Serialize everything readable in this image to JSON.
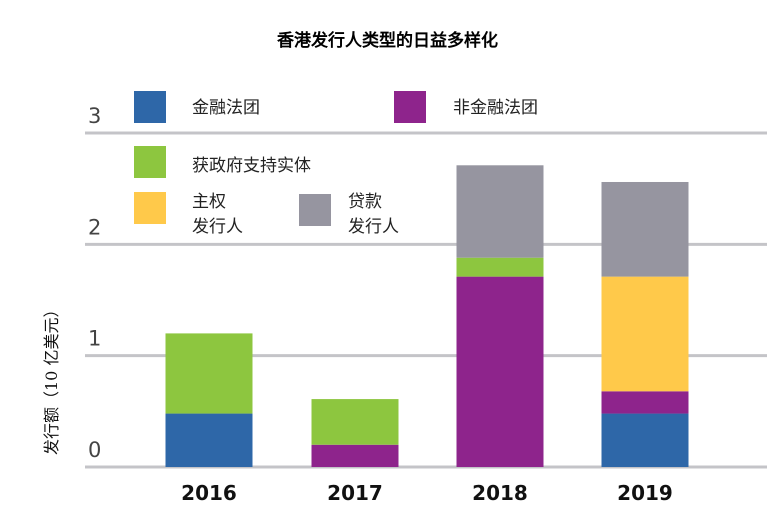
{
  "chart_data": {
    "type": "bar",
    "stacked": true,
    "title": "香港发行人类型的日益多样化",
    "xlabel": "",
    "ylabel": "发行额（10 亿美元）",
    "ylim": [
      0,
      3
    ],
    "yticks": [
      0,
      1,
      2,
      3
    ],
    "grid": true,
    "legend_position": "top-left (inside plot)",
    "categories": [
      "2016",
      "2017",
      "2018",
      "2019"
    ],
    "series": [
      {
        "name": "金融法团",
        "label_lines": [
          "金融法团"
        ],
        "color": "#2e67a8",
        "values": [
          0.48,
          0,
          0,
          0.48
        ]
      },
      {
        "name": "非金融法团",
        "label_lines": [
          "非金融法团"
        ],
        "color": "#8e248c",
        "values": [
          0,
          0.2,
          1.71,
          0.2
        ]
      },
      {
        "name": "获政府支持实体",
        "label_lines": [
          "获政府支持实体"
        ],
        "color": "#8dc63f",
        "values": [
          0.72,
          0.41,
          0.17,
          0
        ]
      },
      {
        "name": "主权发行人",
        "label_lines": [
          "主权",
          "发行人"
        ],
        "color": "#ffc94a",
        "values": [
          0,
          0,
          0,
          1.03
        ]
      },
      {
        "name": "贷款发行人",
        "label_lines": [
          "贷款",
          "发行人"
        ],
        "color": "#9695a0",
        "values": [
          0,
          0,
          0.83,
          0.85
        ]
      }
    ]
  }
}
